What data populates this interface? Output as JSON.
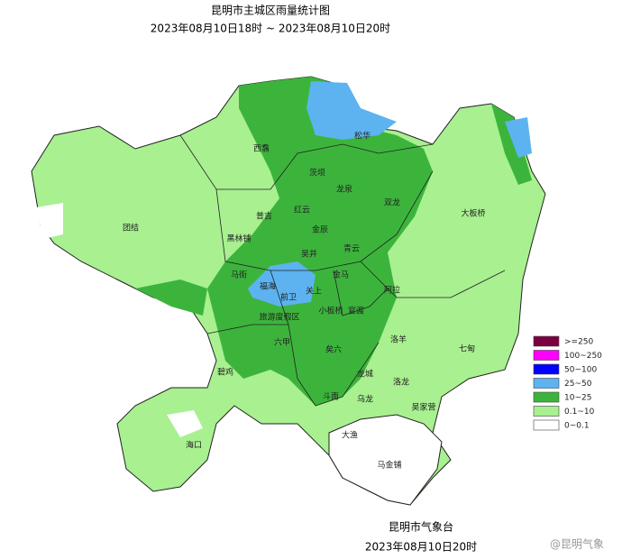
{
  "header": {
    "title": "昆明市主城区雨量统计图",
    "period": "2023年08月10日18时 ~ 2023年08月10日20时"
  },
  "places": [
    "松华",
    "西翥",
    "茨坝",
    "龙泉",
    "双龙",
    "大板桥",
    "团结",
    "普吉",
    "红云",
    "金辰",
    "黑林铺",
    "青云",
    "马街",
    "金马",
    "前卫",
    "关上",
    "吴井",
    "小板桥",
    "阿拉",
    "官渡",
    "六甲",
    "福海",
    "碧鸡",
    "海口",
    "斗南",
    "龙城",
    "乌龙",
    "洛龙",
    "吴家营",
    "洛羊",
    "七甸",
    "大渔",
    "马金铺",
    "旅游度假区",
    "矣六"
  ],
  "legend": [
    {
      "label": ">=250",
      "color": "#7a0040"
    },
    {
      "label": "100~250",
      "color": "#ff00ff"
    },
    {
      "label": "50~100",
      "color": "#0000ff"
    },
    {
      "label": "25~50",
      "color": "#5cb3f0"
    },
    {
      "label": "10~25",
      "color": "#3cb43c"
    },
    {
      "label": "0.1~10",
      "color": "#a8f090"
    },
    {
      "label": "0~0.1",
      "color": "#ffffff"
    }
  ],
  "footer": {
    "agency": "昆明市气象台",
    "time": "2023年08月10日20时",
    "watermark": "@昆明气象"
  }
}
